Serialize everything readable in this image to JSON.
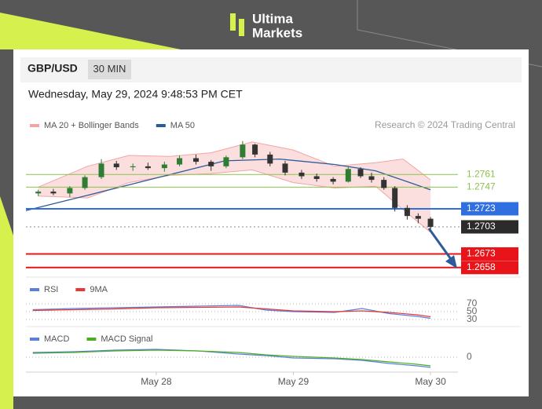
{
  "brand": [
    "Ultima",
    "Markets"
  ],
  "symbol": "GBP/USD",
  "interval": "30 MIN",
  "timestamp": "Wednesday, May 29, 2024 9:48:53 PM CET",
  "credit": "Research © 2024 Trading Central",
  "chart_data": [
    {
      "type": "candlestick",
      "xlim": [
        27.05,
        30.2
      ],
      "ylim": [
        1.265,
        1.2802
      ],
      "x": [
        27.14,
        27.25,
        27.37,
        27.48,
        27.6,
        27.71,
        27.83,
        27.94,
        28.06,
        28.17,
        28.29,
        28.4,
        28.51,
        28.63,
        28.72,
        28.83,
        28.94,
        29.06,
        29.17,
        29.29,
        29.4,
        29.49,
        29.57,
        29.66,
        29.74,
        29.83,
        29.91,
        30.0
      ],
      "open": [
        1.274,
        1.2742,
        1.274,
        1.2746,
        1.2758,
        1.2773,
        1.2769,
        1.277,
        1.2768,
        1.2772,
        1.2779,
        1.2775,
        1.277,
        1.278,
        1.2794,
        1.2783,
        1.2773,
        1.2763,
        1.2759,
        1.2756,
        1.2753,
        1.2767,
        1.2759,
        1.2755,
        1.2746,
        1.2724,
        1.2715,
        1.2712
      ],
      "high": [
        1.2744,
        1.2745,
        1.2748,
        1.276,
        1.2778,
        1.2776,
        1.2773,
        1.2774,
        1.2775,
        1.2782,
        1.2783,
        1.2777,
        1.2782,
        1.2798,
        1.2795,
        1.2786,
        1.2776,
        1.2766,
        1.2762,
        1.2758,
        1.277,
        1.2769,
        1.2763,
        1.2758,
        1.2748,
        1.2727,
        1.2718,
        1.2714
      ],
      "low": [
        1.2737,
        1.2738,
        1.2736,
        1.2744,
        1.2756,
        1.2766,
        1.2765,
        1.2766,
        1.2764,
        1.277,
        1.2772,
        1.2765,
        1.2768,
        1.2778,
        1.278,
        1.277,
        1.276,
        1.2756,
        1.2753,
        1.275,
        1.2752,
        1.2757,
        1.2752,
        1.2744,
        1.272,
        1.2711,
        1.2707,
        1.27
      ],
      "close": [
        1.2742,
        1.274,
        1.2746,
        1.2758,
        1.2773,
        1.2769,
        1.277,
        1.2768,
        1.2772,
        1.2779,
        1.2775,
        1.277,
        1.278,
        1.2794,
        1.2783,
        1.2773,
        1.2763,
        1.2759,
        1.2756,
        1.2753,
        1.2767,
        1.2759,
        1.2755,
        1.2746,
        1.2724,
        1.2715,
        1.2712,
        1.2703
      ],
      "up_color": "#2e7d32",
      "down_color": "#333333",
      "overlays": [
        {
          "name": "MA 20 + Bollinger Bands",
          "color": "#f4a3a3",
          "x": [
            27.14,
            27.5,
            27.8,
            28.1,
            28.4,
            28.7,
            29.0,
            29.3,
            29.6,
            29.8,
            30.0
          ],
          "upper": [
            1.2747,
            1.277,
            1.2782,
            1.2781,
            1.2785,
            1.2797,
            1.2788,
            1.277,
            1.2774,
            1.2778,
            1.2755
          ],
          "lower": [
            1.2737,
            1.2735,
            1.2752,
            1.276,
            1.2762,
            1.2766,
            1.2752,
            1.2746,
            1.2748,
            1.2722,
            1.2697
          ]
        },
        {
          "name": "MA 50",
          "color": "#2d5b9a",
          "x": [
            27.05,
            27.5,
            28.0,
            28.5,
            28.9,
            29.3,
            29.6,
            29.85,
            30.0
          ],
          "values": [
            1.2721,
            1.2738,
            1.2757,
            1.2776,
            1.2778,
            1.2772,
            1.2765,
            1.2752,
            1.2744
          ]
        }
      ],
      "levels": [
        {
          "value": 1.2761,
          "color": "#8bc34a",
          "style": "text"
        },
        {
          "value": 1.2747,
          "color": "#8bc34a",
          "style": "text"
        },
        {
          "value": 1.2723,
          "color": "#2f6fe0",
          "style": "box"
        },
        {
          "value": 1.2703,
          "color": "#2b2b2b",
          "style": "box",
          "dashed": true
        },
        {
          "value": 1.2673,
          "color": "#e8141a",
          "style": "box"
        },
        {
          "value": 1.2658,
          "color": "#e8141a",
          "style": "box"
        }
      ]
    },
    {
      "type": "line",
      "xlim": [
        27.05,
        30.2
      ],
      "ylim": [
        20,
        88
      ],
      "yticks": [
        70,
        50,
        30
      ],
      "x": [
        27.1,
        27.4,
        27.7,
        28.0,
        28.3,
        28.6,
        28.8,
        29.0,
        29.3,
        29.5,
        29.7,
        29.9,
        30.0
      ],
      "series": [
        {
          "name": "RSI",
          "color": "#5b7fdc",
          "values": [
            55,
            58,
            60,
            62,
            64,
            66,
            54,
            50,
            48,
            58,
            45,
            38,
            33
          ]
        },
        {
          "name": "9MA",
          "color": "#e53935",
          "values": [
            53,
            55,
            57,
            60,
            61,
            62,
            57,
            52,
            50,
            52,
            48,
            42,
            37
          ]
        }
      ]
    },
    {
      "type": "line",
      "xlim": [
        27.05,
        30.2
      ],
      "ylim": [
        -0.0015,
        0.0015
      ],
      "yticks": [
        0
      ],
      "xticks": [
        {
          "value": 28,
          "label": "May 28"
        },
        {
          "value": 29,
          "label": "May 29"
        },
        {
          "value": 30,
          "label": "May 30"
        }
      ],
      "x": [
        27.1,
        27.4,
        27.7,
        28.0,
        28.3,
        28.6,
        28.8,
        29.0,
        29.3,
        29.5,
        29.7,
        29.9,
        30.0
      ],
      "series": [
        {
          "name": "MACD",
          "color": "#5b7fdc",
          "values": [
            0.0006,
            0.0007,
            0.0009,
            0.001,
            0.0008,
            0.0004,
            0.0002,
            -0.0001,
            -0.0002,
            -0.0004,
            -0.0008,
            -0.0011,
            -0.0013
          ]
        },
        {
          "name": "MACD Signal",
          "color": "#4caf23",
          "values": [
            0.0005,
            0.0006,
            0.0008,
            0.0009,
            0.0008,
            0.0006,
            0.0003,
            0.0001,
            -0.0001,
            -0.0003,
            -0.0006,
            -0.0009,
            -0.0011
          ]
        }
      ]
    }
  ]
}
